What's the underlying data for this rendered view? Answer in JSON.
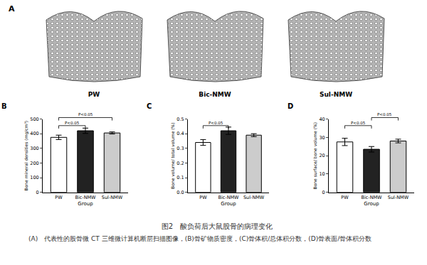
{
  "panel_a": {
    "label": "A",
    "images": [
      "PW",
      "Bic-NMW",
      "Sul-NMW"
    ]
  },
  "chart_data": [
    {
      "panel": "B",
      "type": "bar",
      "categories": [
        "PW",
        "Bic-NMW",
        "Sul-NMW"
      ],
      "values": [
        375,
        420,
        405
      ],
      "errors": [
        15,
        18,
        7
      ],
      "colors": [
        "#ffffff",
        "#222222",
        "#cccccc"
      ],
      "x_label": "Group",
      "y_label": "Bone mineral densities (mg/cm³)",
      "ylim": [
        0,
        500
      ],
      "yticks": [
        0,
        100,
        200,
        300,
        400,
        500
      ],
      "significance": [
        {
          "groups": [
            "PW",
            "Bic-NMW"
          ],
          "label": "P<0.05"
        },
        {
          "groups": [
            "PW",
            "Sul-NMW"
          ],
          "label": "P<0.05"
        }
      ]
    },
    {
      "panel": "C",
      "type": "bar",
      "categories": [
        "PW",
        "Bic-NMW",
        "Sul-NMW"
      ],
      "values": [
        0.34,
        0.42,
        0.39
      ],
      "errors": [
        0.02,
        0.025,
        0.01
      ],
      "colors": [
        "#ffffff",
        "#222222",
        "#cccccc"
      ],
      "x_label": "Group",
      "y_label": "Bone volume/ total volume (%)",
      "ylim": [
        0,
        0.5
      ],
      "yticks": [
        {
          "value": 0,
          "label": "0.0"
        },
        0.1,
        0.2,
        0.3,
        0.4,
        0.5
      ],
      "significance": [
        {
          "groups": [
            "PW",
            "Bic-NMW"
          ],
          "label": "P<0.05"
        }
      ]
    },
    {
      "panel": "D",
      "type": "bar",
      "categories": [
        "PW",
        "Bic-NMW",
        "Sul-NMW"
      ],
      "values": [
        27.5,
        23.5,
        28
      ],
      "errors": [
        2,
        1.5,
        1
      ],
      "colors": [
        "#ffffff",
        "#222222",
        "#cccccc"
      ],
      "x_label": "Group",
      "y_label": "Bone surface/ bone volume (%)",
      "ylim": [
        0,
        40
      ],
      "yticks": [
        0,
        10,
        20,
        30,
        40
      ],
      "significance": [
        {
          "groups": [
            "PW",
            "Bic-NMW"
          ],
          "label": "P<0.05"
        },
        {
          "groups": [
            "Bic-NMW",
            "Sul-NMW"
          ],
          "label": "P<0.05"
        }
      ]
    }
  ],
  "caption": {
    "title": "图2　酸负荷后大鼠股骨的病理变化",
    "text": "(A)　代表性的股骨微 CT 三维微计算机断层扫描图像，(B)骨矿物质密度，(C)骨体积/总体积分数，(D)骨表面/骨体积分数"
  }
}
